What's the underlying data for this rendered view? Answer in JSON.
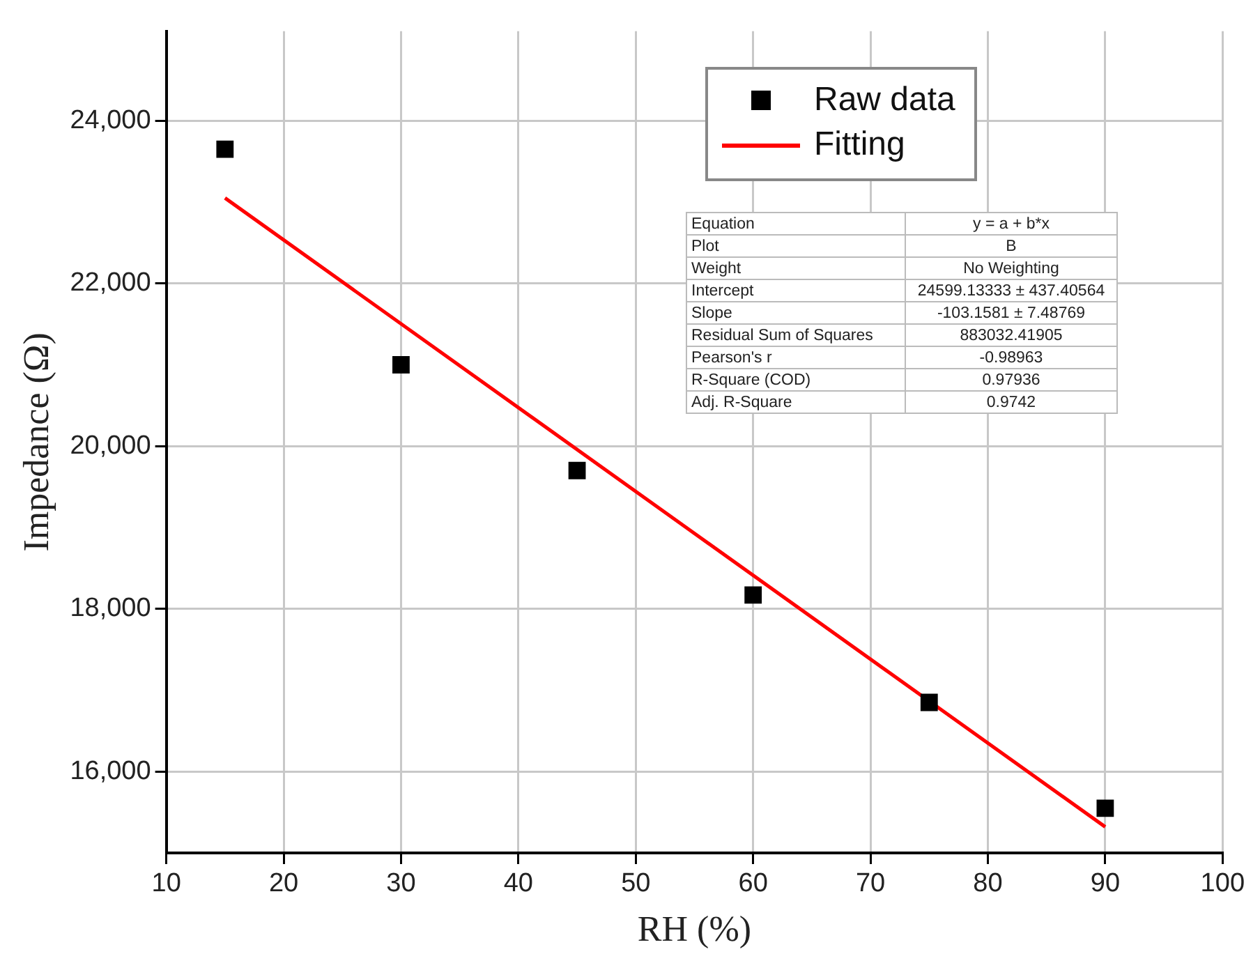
{
  "chart_data": {
    "type": "scatter",
    "xlabel": "RH (%)",
    "ylabel": "Impedance (Ω)",
    "xlim": [
      10,
      100
    ],
    "xticks": [
      10,
      20,
      30,
      40,
      50,
      60,
      70,
      80,
      90,
      100
    ],
    "ylim": [
      15000,
      25100
    ],
    "yticks": [
      {
        "value": 16000,
        "label": "16,000"
      },
      {
        "value": 18000,
        "label": "18,000"
      },
      {
        "value": 20000,
        "label": "20,000"
      },
      {
        "value": 22000,
        "label": "22,000"
      },
      {
        "value": 24000,
        "label": "24,000"
      }
    ],
    "grid": true,
    "legend": "top right",
    "series": [
      {
        "name": "Raw data",
        "marker": "square",
        "color": "#000000",
        "x": [
          15,
          30,
          45,
          60,
          75,
          90
        ],
        "values": [
          23650,
          21000,
          19700,
          18170,
          16850,
          15550
        ]
      },
      {
        "name": "Fitting",
        "type": "line",
        "marker": "none",
        "line_style": "solid",
        "color": "#ff0000",
        "x": [
          15,
          90
        ],
        "values": [
          23050,
          15320
        ]
      }
    ],
    "annotations": [
      "Equation",
      "y = a + b*x",
      "Plot",
      "B",
      "Weight",
      "No Weighting",
      "Intercept",
      "24599.13333 ± 437.40564",
      "Slope",
      "-103.1581 ± 7.48769",
      "Residual Sum of Squares",
      "883032.41905",
      "Pearson's r",
      "-0.98963",
      "R-Square (COD)",
      "0.97936",
      "Adj. R-Square",
      "0.9742"
    ]
  }
}
